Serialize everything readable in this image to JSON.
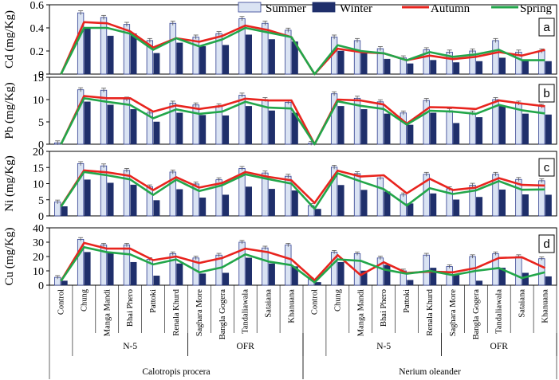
{
  "chart_data": {
    "type": "bar",
    "categories": [
      "Control",
      "Chung",
      "Manga Mandi",
      "Bhai Phero",
      "Pattoki",
      "Renala Khurd",
      "Saghara More",
      "Bangla Gogera",
      "Tandaliawala",
      "Sataiana",
      "Khanuana",
      "Control",
      "Chung",
      "Manga Mandi",
      "Bhai Phero",
      "Pattoki",
      "Renala Khurd",
      "Saghara More",
      "Bangla Gogera",
      "Tandaliawala",
      "Sataiana",
      "Khanuana"
    ],
    "group_labels": [
      {
        "label": "N-5",
        "from": 1,
        "to": 5
      },
      {
        "label": "OFR",
        "from": 6,
        "to": 10
      },
      {
        "label": "N-5",
        "from": 12,
        "to": 16
      },
      {
        "label": "OFR",
        "from": 17,
        "to": 21
      }
    ],
    "species_labels": [
      {
        "label": "Calotropis procera",
        "from": 0,
        "to": 10
      },
      {
        "label": "Nerium oleander",
        "from": 11,
        "to": 21
      }
    ],
    "legend": [
      "Summer",
      "Winter",
      "Autumn",
      "Spring"
    ],
    "colors": {
      "Summer": "#dae3f3",
      "Winter": "#1f2f6b",
      "Autumn": "#e8241e",
      "Spring": "#22a64a",
      "bar_edge": "#2e3d8f"
    },
    "panels": [
      {
        "id": "a",
        "ylabel": "Cd  (mg/Kg)",
        "ylim": [
          0,
          0.6
        ],
        "yticks": [
          "0",
          "0.2",
          "0.4",
          "0.6"
        ],
        "ytick_values": [
          0,
          0.2,
          0.4,
          0.6
        ],
        "series": [
          {
            "name": "Summer",
            "values": [
              0,
              0.53,
              0.49,
              0.43,
              0.29,
              0.44,
              0.32,
              0.35,
              0.48,
              0.44,
              0.38,
              0,
              0.32,
              0.29,
              0.22,
              0.14,
              0.21,
              0.19,
              0.2,
              0.29,
              0.19,
              0.2
            ]
          },
          {
            "name": "Winter",
            "values": [
              0,
              0.4,
              0.33,
              0.35,
              0.18,
              0.27,
              0.24,
              0.25,
              0.34,
              0.3,
              0.28,
              0,
              0.2,
              0.18,
              0.13,
              0.09,
              0.12,
              0.1,
              0.11,
              0.14,
              0.12,
              0.11
            ]
          },
          {
            "name": "Autumn",
            "values": [
              0,
              0.45,
              0.44,
              0.37,
              0.23,
              0.31,
              0.28,
              0.33,
              0.42,
              0.38,
              0.32,
              0,
              0.22,
              0.19,
              0.18,
              0.12,
              0.16,
              0.13,
              0.15,
              0.19,
              0.16,
              0.21
            ]
          },
          {
            "name": "Spring",
            "values": [
              0,
              0.4,
              0.4,
              0.35,
              0.21,
              0.31,
              0.24,
              0.3,
              0.4,
              0.36,
              0.32,
              0,
              0.25,
              0.2,
              0.18,
              0.12,
              0.19,
              0.15,
              0.17,
              0.21,
              0.12,
              0.12
            ]
          }
        ]
      },
      {
        "id": "b",
        "ylabel": "Pb  (mg/Kg)",
        "ylim": [
          0,
          15
        ],
        "yticks": [
          "0",
          "5",
          "10",
          "15"
        ],
        "ytick_values": [
          0,
          5,
          10,
          15
        ],
        "series": [
          {
            "name": "Summer",
            "values": [
              0.3,
              12.2,
              12.1,
              10.1,
              7.0,
              9.2,
              8.8,
              8.6,
              11.0,
              10.0,
              9.4,
              0.2,
              11.3,
              10.3,
              9.5,
              7.0,
              9.8,
              7.5,
              7.0,
              10.0,
              9.2,
              8.5
            ]
          },
          {
            "name": "Winter",
            "values": [
              0,
              9.5,
              8.8,
              7.8,
              5.0,
              7.0,
              6.5,
              6.4,
              8.5,
              7.5,
              7.0,
              0,
              8.5,
              7.8,
              6.8,
              4.3,
              7.0,
              4.7,
              6.0,
              8.5,
              6.8,
              6.6
            ]
          },
          {
            "name": "Autumn",
            "values": [
              0,
              10.8,
              10.3,
              10.3,
              7.3,
              8.7,
              7.9,
              8.6,
              10.2,
              9.8,
              9.8,
              0,
              10.0,
              9.8,
              8.9,
              4.6,
              8.3,
              8.2,
              7.9,
              9.8,
              9.1,
              8.5
            ]
          },
          {
            "name": "Spring",
            "values": [
              0,
              10.3,
              9.5,
              8.8,
              5.8,
              7.8,
              6.8,
              7.3,
              9.5,
              8.2,
              8.0,
              0,
              9.6,
              8.6,
              7.9,
              4.4,
              7.5,
              7.3,
              6.8,
              8.8,
              7.6,
              6.9
            ]
          }
        ]
      },
      {
        "id": "c",
        "ylabel": "Ni  (mg/Kg)",
        "ylim": [
          0,
          20
        ],
        "yticks": [
          "0",
          "5",
          "10",
          "15",
          "20"
        ],
        "ytick_values": [
          0,
          5,
          10,
          15,
          20
        ],
        "series": [
          {
            "name": "Summer",
            "values": [
              4.3,
              16.2,
              15.5,
              14.1,
              9.0,
              13.6,
              9.9,
              11.2,
              14.7,
              13.3,
              12.3,
              3.2,
              15.1,
              13.1,
              11.8,
              6.5,
              12.9,
              8.4,
              9.5,
              12.9,
              11.3,
              10.9
            ]
          },
          {
            "name": "Winter",
            "values": [
              2.9,
              11.2,
              10.2,
              9.6,
              4.8,
              8.2,
              5.6,
              6.5,
              9.0,
              8.3,
              7.8,
              2.1,
              9.5,
              8.0,
              7.5,
              3.8,
              6.9,
              5.0,
              5.8,
              8.1,
              6.6,
              6.5
            ]
          },
          {
            "name": "Autumn",
            "values": [
              3.0,
              14.1,
              13.5,
              12.4,
              8.0,
              12.0,
              8.8,
              10.2,
              13.6,
              12.1,
              11.0,
              4.0,
              14.0,
              12.2,
              12.6,
              7.0,
              11.5,
              8.0,
              8.8,
              11.7,
              9.6,
              9.4
            ]
          },
          {
            "name": "Spring",
            "values": [
              2.9,
              13.6,
              12.6,
              11.3,
              6.5,
              11.2,
              7.7,
              9.5,
              12.9,
              11.4,
              10.0,
              2.2,
              13.2,
              10.7,
              8.3,
              3.2,
              8.6,
              6.8,
              7.9,
              10.8,
              8.1,
              8.2
            ]
          }
        ]
      },
      {
        "id": "d",
        "ylabel": "Cu  (mg/Kg)",
        "ylim": [
          0,
          40
        ],
        "yticks": [
          "0",
          "10",
          "20",
          "30",
          "40"
        ],
        "ytick_values": [
          0,
          10,
          20,
          30,
          40
        ],
        "series": [
          {
            "name": "Summer",
            "values": [
              5.5,
              32.0,
              28.0,
              28.0,
              18.0,
              22.0,
              19.0,
              21.0,
              30.0,
              26.0,
              28.0,
              4.0,
              23.0,
              22.0,
              19.0,
              10.0,
              21.0,
              13.0,
              20.0,
              22.0,
              20.0,
              18.5
            ]
          },
          {
            "name": "Winter",
            "values": [
              3.0,
              23.0,
              23.0,
              16.0,
              6.5,
              15.0,
              8.0,
              8.5,
              19.0,
              15.0,
              13.0,
              2.0,
              16.0,
              10.0,
              14.0,
              3.5,
              12.0,
              7.5,
              3.0,
              12.0,
              8.5,
              6.0
            ]
          },
          {
            "name": "Autumn",
            "values": [
              3.0,
              29.5,
              25.5,
              25.5,
              17.5,
              20.0,
              15.5,
              19.0,
              25.5,
              23.0,
              18.0,
              3.5,
              21.0,
              7.0,
              16.0,
              8.5,
              9.5,
              9.0,
              12.0,
              19.0,
              19.5,
              12.0
            ]
          },
          {
            "name": "Spring",
            "values": [
              3.0,
              26.5,
              23.0,
              21.5,
              14.5,
              18.0,
              9.0,
              12.5,
              21.5,
              16.5,
              14.0,
              2.0,
              18.0,
              17.0,
              11.0,
              8.0,
              10.0,
              7.0,
              10.0,
              12.0,
              5.0,
              9.0
            ]
          }
        ]
      }
    ]
  }
}
